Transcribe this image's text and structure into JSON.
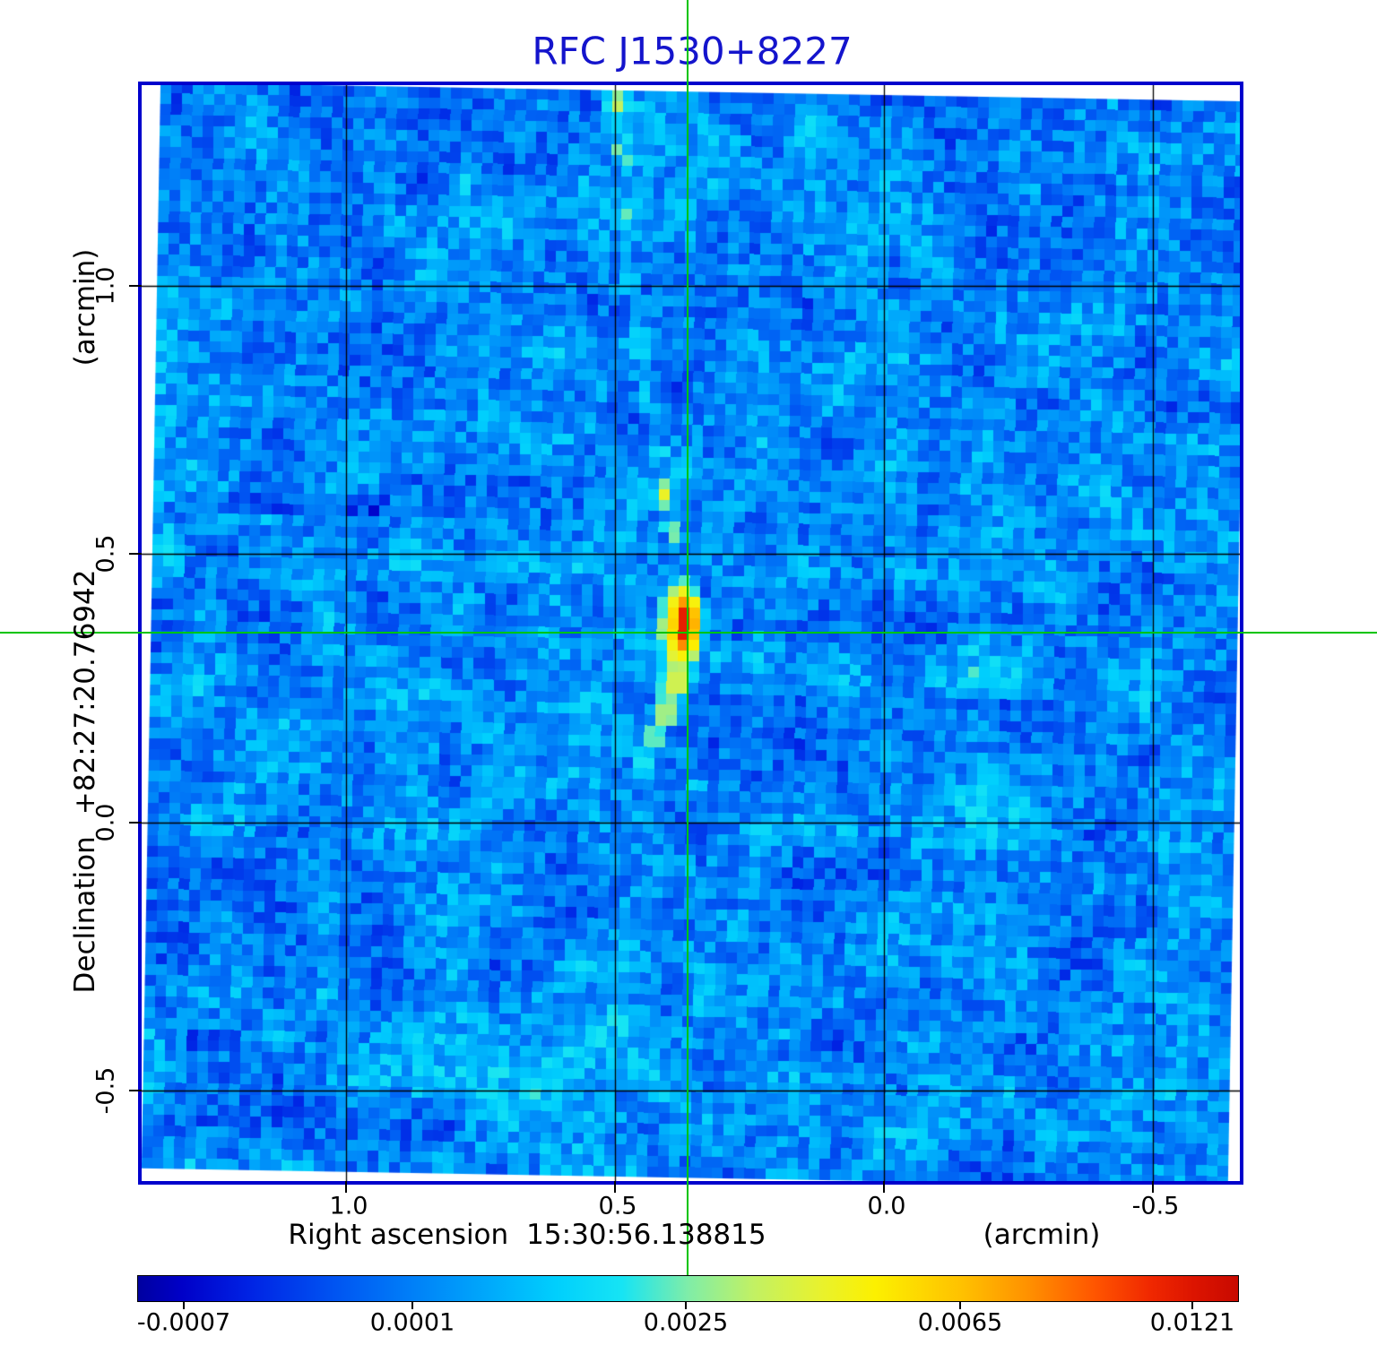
{
  "title": {
    "text": "RFC J1530+8227"
  },
  "x_axis": {
    "label": "Right ascension",
    "coordinate": "15:30:56.138815",
    "unit": "(arcmin)",
    "ticks": [
      "1.0",
      "0.5",
      "0.0",
      "-0.5"
    ]
  },
  "y_axis": {
    "label": "Declination",
    "coordinate": "+82:27:20.76942",
    "unit": "(arcmin)",
    "ticks": [
      "1.0",
      "0.5",
      "0.0",
      "-0.5"
    ]
  },
  "colorbar": {
    "tick_labels": [
      "-0.0007",
      "0.0001",
      "0.0025",
      "0.0065",
      "0.0121"
    ]
  },
  "colors": {
    "title": "#1414cc",
    "frame": "#0000cc",
    "grid": "#000000",
    "crosshair": "#00c400",
    "background": "#ffffff",
    "colormap_stops": [
      [
        0.0,
        "#0000a0"
      ],
      [
        0.04,
        "#0000c8"
      ],
      [
        0.1,
        "#0022e4"
      ],
      [
        0.18,
        "#0055f2"
      ],
      [
        0.25,
        "#0080f8"
      ],
      [
        0.32,
        "#00aafb"
      ],
      [
        0.38,
        "#00cffd"
      ],
      [
        0.44,
        "#16e4f4"
      ],
      [
        0.5,
        "#7feda8"
      ],
      [
        0.56,
        "#c2f163"
      ],
      [
        0.62,
        "#e8f22e"
      ],
      [
        0.67,
        "#fcf000"
      ],
      [
        0.75,
        "#ffc000"
      ],
      [
        0.81,
        "#ff9000"
      ],
      [
        0.87,
        "#ff5500"
      ],
      [
        0.92,
        "#f02800"
      ],
      [
        0.96,
        "#dc1400"
      ],
      [
        1.0,
        "#c80a00"
      ]
    ]
  },
  "chart_data": {
    "type": "heatmap",
    "title": "RFC J1530+8227",
    "xlabel": "Right ascension 15:30:56.138815 (arcmin)",
    "ylabel": "Declination +82:27:20.76942 (arcmin)",
    "x_ticks_arcmin": [
      1.0,
      0.5,
      0.0,
      -0.5
    ],
    "y_ticks_arcmin": [
      1.0,
      0.5,
      0.0,
      -0.5
    ],
    "xlim_arcmin": [
      1.38,
      -0.66
    ],
    "ylim_arcmin": [
      -0.67,
      1.37
    ],
    "x_axis_reversed": true,
    "grid": true,
    "colorbar_ticks": [
      -0.0007,
      0.0001,
      0.0025,
      0.0065,
      0.0121
    ],
    "colorbar_range": [
      -0.0007,
      0.0121
    ],
    "colorbar_scale": "nonlinear",
    "peak": {
      "x_arcmin": 0.36,
      "y_arcmin": 0.35,
      "value": 0.0121
    },
    "crosshair_arcmin": {
      "x": 0.36,
      "y": 0.35
    },
    "description": "Radio interferometric intensity map: blue noise background (~0.0001 level), compact bright red core at crosshair with yellow halo, jet trail extending north and a fainter counter-trail to the south-east; image square slightly rotated inside frame."
  }
}
